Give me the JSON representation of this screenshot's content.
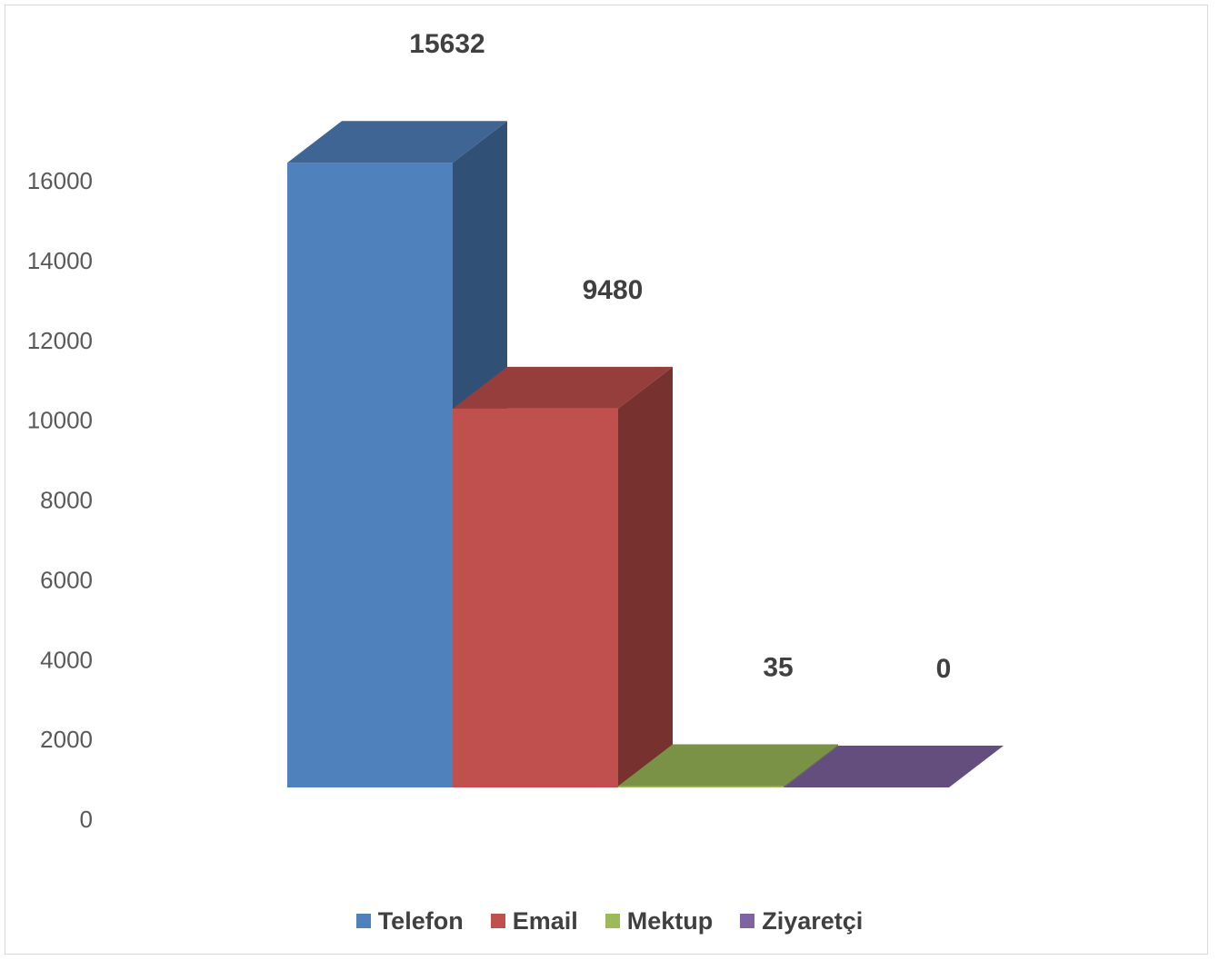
{
  "chart_data": {
    "type": "bar",
    "categories": [
      "Telefon",
      "Email",
      "Mektup",
      "Ziyaretçi"
    ],
    "values": [
      15632,
      9480,
      35,
      0
    ],
    "data_labels": [
      "15632",
      "9480",
      "35",
      "0"
    ],
    "series": [
      {
        "name": "Telefon",
        "value": 15632,
        "color": "#4f81bd"
      },
      {
        "name": "Email",
        "value": 9480,
        "color": "#c0504d"
      },
      {
        "name": "Mektup",
        "value": 35,
        "color": "#9bbb59"
      },
      {
        "name": "Ziyaretçi",
        "value": 0,
        "color": "#8064a2"
      }
    ],
    "ylim": [
      0,
      16000
    ],
    "yticks": [
      "0",
      "2000",
      "4000",
      "6000",
      "8000",
      "10000",
      "12000",
      "14000",
      "16000"
    ],
    "grid": false,
    "legend_position": "bottom",
    "style": "3d-clustered-bar"
  }
}
